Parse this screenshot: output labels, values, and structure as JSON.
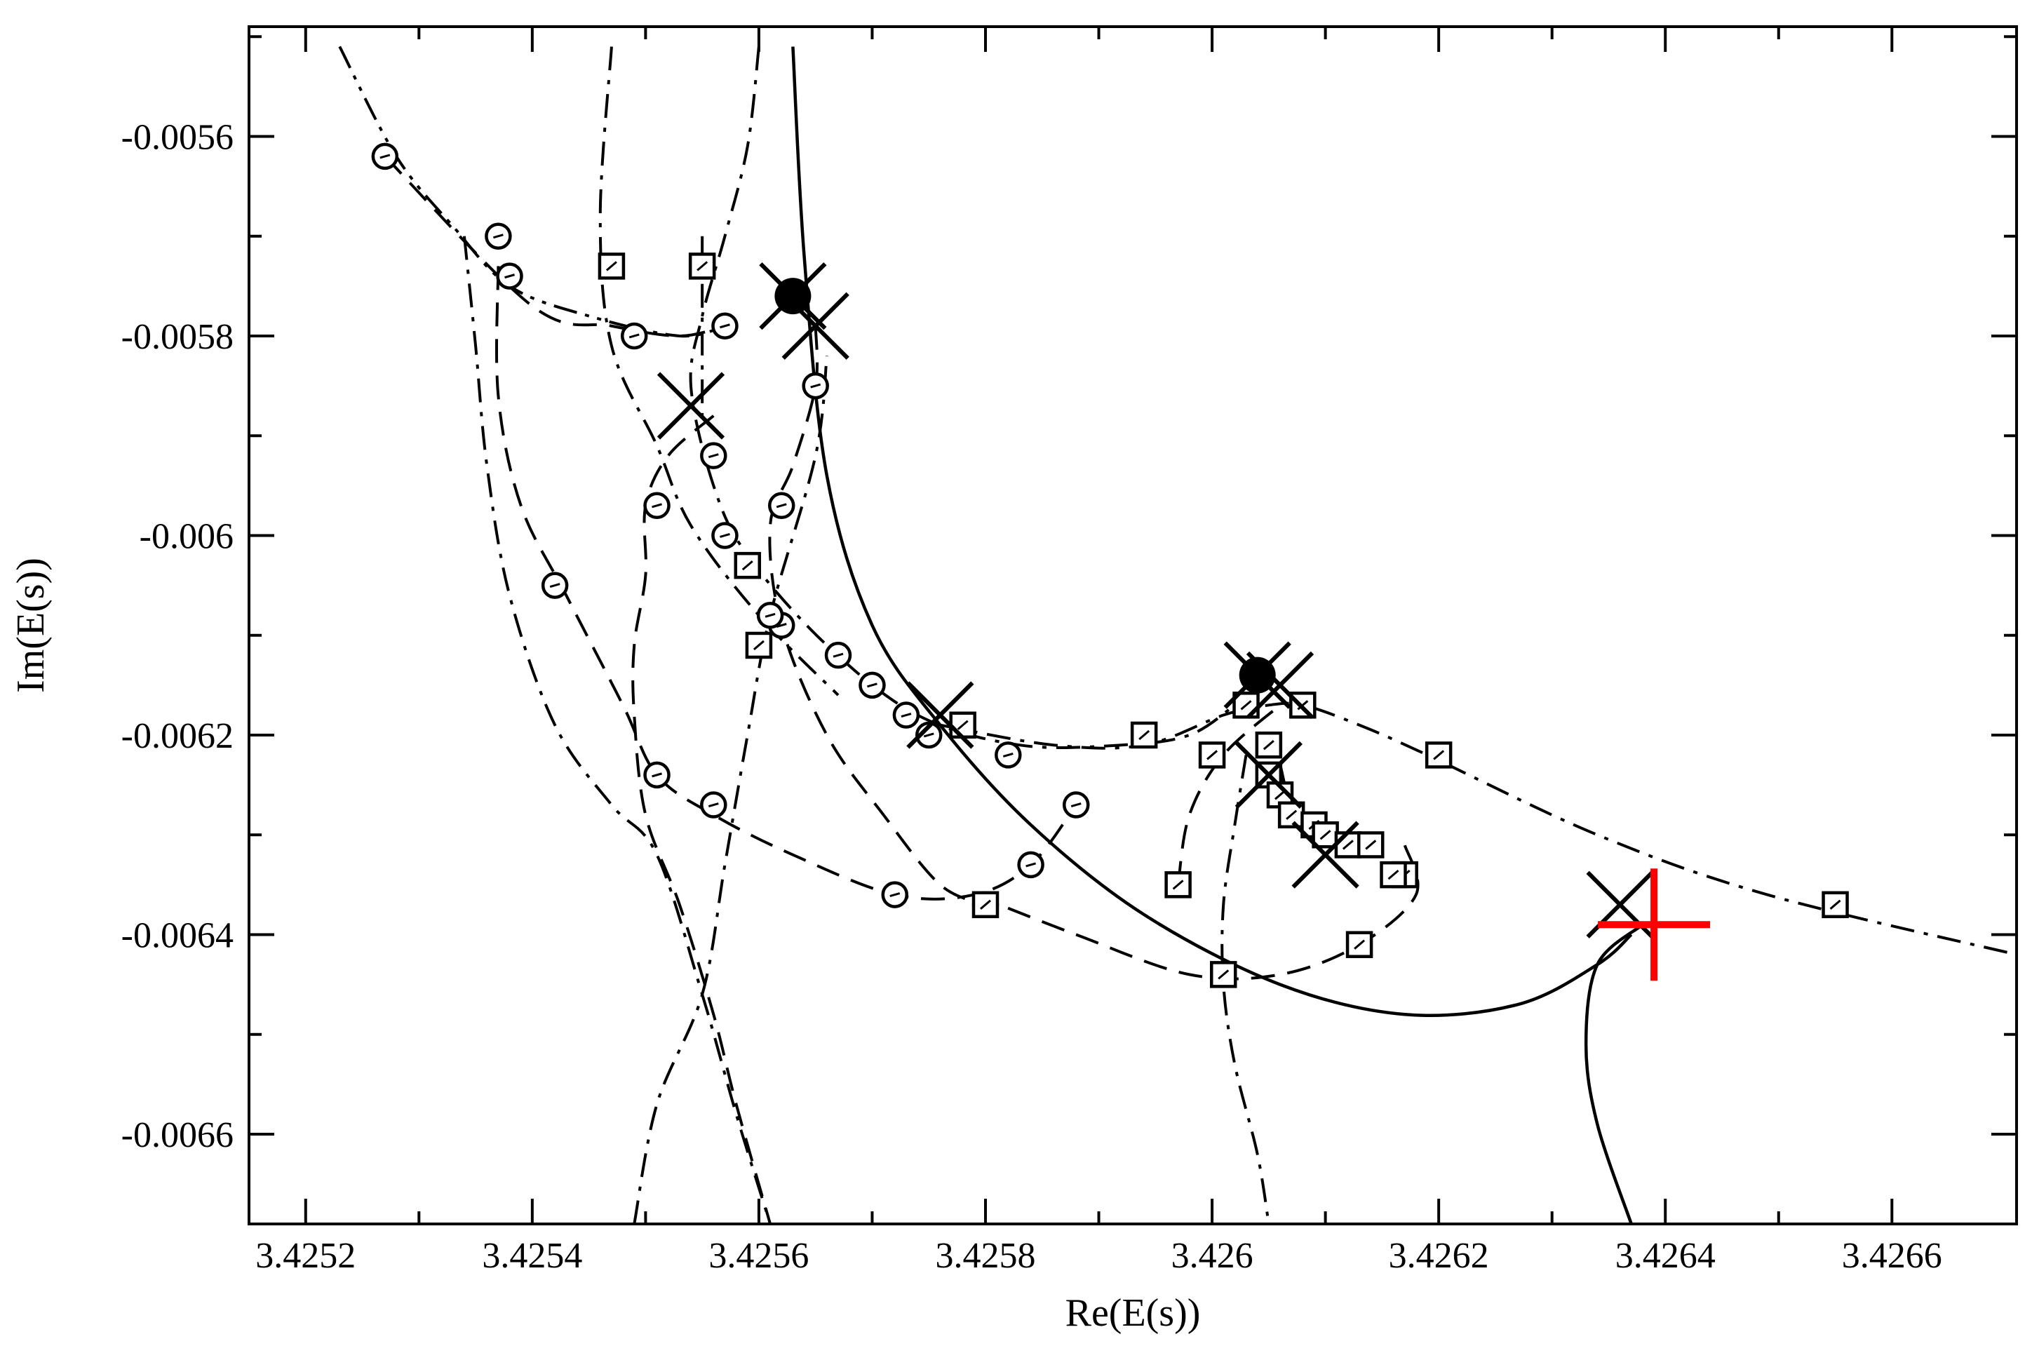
{
  "chart_data": {
    "type": "line",
    "xlabel": "Re(E(s))",
    "ylabel": "Im(E(s))",
    "xlim": [
      3.42515,
      3.42671
    ],
    "ylim": [
      -0.00669,
      -0.00549
    ],
    "x_major_ticks": [
      3.4252,
      3.4254,
      3.4256,
      3.4258,
      3.426,
      3.4262,
      3.4264,
      3.4266
    ],
    "x_minor_ticks": [
      3.4253,
      3.4255,
      3.4257,
      3.4259,
      3.4261,
      3.4263,
      3.4265
    ],
    "x_tick_labels": [
      "3.4252",
      "3.4254",
      "3.4256",
      "3.4258",
      "3.426",
      "3.4262",
      "3.4264",
      "3.4266"
    ],
    "y_major_ticks": [
      -0.0056,
      -0.0058,
      -0.006,
      -0.0062,
      -0.0064,
      -0.0066
    ],
    "y_minor_ticks": [
      -0.0055,
      -0.0057,
      -0.0059,
      -0.0061,
      -0.0063,
      -0.0065
    ],
    "y_tick_labels": [
      "-0.0056",
      "-0.0058",
      "-0.006",
      "-0.0062",
      "-0.0064",
      "-0.0066"
    ],
    "grid": false,
    "legend": false,
    "series": [
      {
        "style": "solid",
        "points": [
          [
            3.42563,
            -0.00551
          ],
          [
            3.42564,
            -0.00572
          ],
          [
            3.42566,
            -0.00594
          ],
          [
            3.4257,
            -0.00609
          ],
          [
            3.42576,
            -0.00619
          ],
          [
            3.42584,
            -0.00629
          ],
          [
            3.42594,
            -0.00638
          ],
          [
            3.42606,
            -0.00645
          ],
          [
            3.42617,
            -0.00648
          ],
          [
            3.42627,
            -0.00647
          ],
          [
            3.42634,
            -0.00643
          ],
          [
            3.42637,
            -0.0064
          ]
        ]
      },
      {
        "style": "solid",
        "points": [
          [
            3.42638,
            -0.00639
          ],
          [
            3.42634,
            -0.00643
          ],
          [
            3.42633,
            -0.00651
          ],
          [
            3.42634,
            -0.00659
          ],
          [
            3.42637,
            -0.00669
          ]
        ]
      },
      {
        "style": "dashed",
        "marker": "circle",
        "points": [
          [
            3.42556,
            -0.00588
          ],
          [
            3.42552,
            -0.00592
          ],
          [
            3.4255,
            -0.00597
          ],
          [
            3.4255,
            -0.00604
          ],
          [
            3.42549,
            -0.00611
          ],
          [
            3.42549,
            -0.00618
          ],
          [
            3.4255,
            -0.00628
          ],
          [
            3.42553,
            -0.00637
          ],
          [
            3.42556,
            -0.00648
          ],
          [
            3.42558,
            -0.00657
          ],
          [
            3.42561,
            -0.00669
          ]
        ],
        "markers": [
          [
            3.42551,
            -0.00597
          ],
          [
            3.42551,
            -0.00624
          ]
        ]
      },
      {
        "style": "dashed",
        "marker": "circle",
        "points": [
          [
            3.42527,
            -0.00562
          ],
          [
            3.4254,
            -0.00577
          ],
          [
            3.42547,
            -0.00579
          ],
          [
            3.42553,
            -0.0058
          ],
          [
            3.42557,
            -0.00579
          ]
        ],
        "markers": [
          [
            3.42527,
            -0.00562
          ],
          [
            3.42537,
            -0.0057
          ],
          [
            3.42549,
            -0.0058
          ],
          [
            3.42557,
            -0.00579
          ]
        ]
      },
      {
        "style": "dashed",
        "marker": "circle",
        "points": [
          [
            3.42537,
            -0.00573
          ],
          [
            3.42537,
            -0.00586
          ],
          [
            3.42539,
            -0.00597
          ],
          [
            3.42543,
            -0.00606
          ],
          [
            3.42548,
            -0.00617
          ],
          [
            3.42551,
            -0.00624
          ],
          [
            3.42556,
            -0.00628
          ],
          [
            3.42563,
            -0.00632
          ],
          [
            3.42572,
            -0.00636
          ],
          [
            3.42579,
            -0.00636
          ],
          [
            3.42584,
            -0.00633
          ],
          [
            3.42588,
            -0.00627
          ]
        ],
        "markers": [
          [
            3.42542,
            -0.00605
          ],
          [
            3.42556,
            -0.00627
          ],
          [
            3.42572,
            -0.00636
          ],
          [
            3.42584,
            -0.00633
          ],
          [
            3.42588,
            -0.00627
          ]
        ]
      },
      {
        "style": "dashed",
        "marker": "circle",
        "points": [
          [
            3.42565,
            -0.00579
          ],
          [
            3.42565,
            -0.00585
          ],
          [
            3.42563,
            -0.00593
          ],
          [
            3.42561,
            -0.00599
          ],
          [
            3.42562,
            -0.00609
          ],
          [
            3.42566,
            -0.0062
          ],
          [
            3.42571,
            -0.00628
          ],
          [
            3.42576,
            -0.00635
          ],
          [
            3.4258,
            -0.00637
          ]
        ],
        "markers": [
          [
            3.42565,
            -0.00585
          ],
          [
            3.42562,
            -0.00597
          ],
          [
            3.42562,
            -0.00609
          ],
          [
            3.4258,
            -0.00637
          ]
        ]
      },
      {
        "style": "dashed",
        "marker": "square",
        "points": [
          [
            3.42597,
            -0.00635
          ],
          [
            3.42598,
            -0.00628
          ],
          [
            3.42601,
            -0.00622
          ],
          [
            3.42606,
            -0.00617
          ]
        ],
        "markers": [
          [
            3.42597,
            -0.00635
          ],
          [
            3.426,
            -0.00622
          ],
          [
            3.42603,
            -0.00617
          ]
        ]
      },
      {
        "style": "dashed",
        "marker": "square",
        "points": [
          [
            3.42579,
            -0.00636
          ],
          [
            3.42588,
            -0.0064
          ],
          [
            3.42598,
            -0.00644
          ],
          [
            3.42606,
            -0.00644
          ],
          [
            3.42613,
            -0.00641
          ],
          [
            3.42618,
            -0.00636
          ],
          [
            3.42617,
            -0.00631
          ]
        ],
        "markers": [
          [
            3.4258,
            -0.00637
          ],
          [
            3.42601,
            -0.00644
          ],
          [
            3.42613,
            -0.00641
          ],
          [
            3.42617,
            -0.00634
          ]
        ]
      },
      {
        "style": "dashdot",
        "marker": "circle",
        "points": [
          [
            3.4256,
            -0.00551
          ],
          [
            3.42559,
            -0.00561
          ],
          [
            3.42557,
            -0.0057
          ],
          [
            3.42555,
            -0.00578
          ],
          [
            3.42554,
            -0.00585
          ],
          [
            3.42556,
            -0.00595
          ],
          [
            3.42559,
            -0.00602
          ],
          [
            3.42566,
            -0.00611
          ],
          [
            3.42574,
            -0.00618
          ],
          [
            3.42583,
            -0.00621
          ],
          [
            3.42592,
            -0.00621
          ],
          [
            3.42598,
            -0.0062
          ],
          [
            3.42602,
            -0.00617
          ]
        ],
        "markers": [
          [
            3.42556,
            -0.00592
          ],
          [
            3.42557,
            -0.006
          ],
          [
            3.42561,
            -0.00608
          ],
          [
            3.42567,
            -0.00612
          ],
          [
            3.4257,
            -0.00615
          ],
          [
            3.42573,
            -0.00618
          ],
          [
            3.42575,
            -0.0062
          ],
          [
            3.42582,
            -0.00622
          ]
        ]
      },
      {
        "style": "dashdot",
        "marker": "square",
        "points": [
          [
            3.42576,
            -0.00619
          ],
          [
            3.42586,
            -0.00621
          ],
          [
            3.42594,
            -0.00621
          ],
          [
            3.42601,
            -0.00618
          ],
          [
            3.42605,
            -0.00617
          ],
          [
            3.42608,
            -0.00617
          ],
          [
            3.42613,
            -0.00619
          ],
          [
            3.42619,
            -0.00622
          ],
          [
            3.42634,
            -0.0063
          ],
          [
            3.42649,
            -0.00636
          ],
          [
            3.42671,
            -0.00642
          ]
        ],
        "markers": [
          [
            3.42578,
            -0.00619
          ],
          [
            3.42594,
            -0.0062
          ],
          [
            3.42608,
            -0.00617
          ],
          [
            3.4262,
            -0.00622
          ],
          [
            3.42655,
            -0.00637
          ]
        ]
      },
      {
        "style": "dashdot",
        "marker": "square",
        "points": [
          [
            3.42547,
            -0.00551
          ],
          [
            3.42546,
            -0.00568
          ],
          [
            3.42547,
            -0.00581
          ],
          [
            3.42551,
            -0.00591
          ],
          [
            3.42554,
            -0.00599
          ],
          [
            3.4256,
            -0.00608
          ],
          [
            3.42567,
            -0.00616
          ]
        ],
        "markers": [
          [
            3.42547,
            -0.00573
          ],
          [
            3.42559,
            -0.00603
          ],
          [
            3.4256,
            -0.00611
          ]
        ]
      },
      {
        "style": "dashdot",
        "marker": "square",
        "points": [
          [
            3.42555,
            -0.0057
          ],
          [
            3.42555,
            -0.00582
          ],
          [
            3.42555,
            -0.00588
          ]
        ],
        "markers": [
          [
            3.42555,
            -0.00573
          ]
        ]
      },
      {
        "style": "dashdotdot",
        "marker": "circle",
        "points": [
          [
            3.42523,
            -0.00551
          ],
          [
            3.42528,
            -0.00562
          ],
          [
            3.42533,
            -0.00569
          ],
          [
            3.42538,
            -0.00575
          ],
          [
            3.42545,
            -0.00578
          ],
          [
            3.42553,
            -0.0058
          ],
          [
            3.42557,
            -0.00579
          ]
        ],
        "markers": [
          [
            3.42538,
            -0.00574
          ]
        ]
      },
      {
        "style": "dashdot",
        "marker": "square",
        "points": [
          [
            3.42603,
            -0.00622
          ],
          [
            3.42602,
            -0.00629
          ],
          [
            3.42601,
            -0.00637
          ],
          [
            3.42601,
            -0.00645
          ],
          [
            3.42602,
            -0.00653
          ],
          [
            3.42604,
            -0.00662
          ],
          [
            3.42605,
            -0.00669
          ]
        ],
        "markers": []
      },
      {
        "style": "dashdot",
        "marker": "none",
        "points": [
          [
            3.42549,
            -0.00669
          ],
          [
            3.42551,
            -0.00657
          ],
          [
            3.42555,
            -0.00646
          ],
          [
            3.42557,
            -0.00633
          ],
          [
            3.42559,
            -0.0062
          ],
          [
            3.42561,
            -0.00608
          ],
          [
            3.42565,
            -0.00592
          ],
          [
            3.42566,
            -0.00582
          ]
        ],
        "markers": []
      },
      {
        "style": "dashdot",
        "marker": "none",
        "points": [
          [
            3.42534,
            -0.0057
          ],
          [
            3.42535,
            -0.00581
          ],
          [
            3.42536,
            -0.00593
          ],
          [
            3.42538,
            -0.00606
          ],
          [
            3.42542,
            -0.00619
          ],
          [
            3.42547,
            -0.00627
          ],
          [
            3.42551,
            -0.00632
          ],
          [
            3.42555,
            -0.00646
          ],
          [
            3.42558,
            -0.00658
          ],
          [
            3.42561,
            -0.00669
          ]
        ],
        "markers": []
      },
      {
        "style": "solid",
        "marker": "square",
        "points": [
          [
            3.42606,
            -0.00623
          ],
          [
            3.42607,
            -0.00627
          ],
          [
            3.42609,
            -0.00629
          ],
          [
            3.42611,
            -0.0063
          ],
          [
            3.42613,
            -0.00631
          ],
          [
            3.42615,
            -0.00631
          ]
        ],
        "markers": [
          [
            3.42605,
            -0.00621
          ],
          [
            3.42605,
            -0.00624
          ],
          [
            3.42606,
            -0.00626
          ],
          [
            3.42607,
            -0.00628
          ],
          [
            3.42609,
            -0.00629
          ],
          [
            3.4261,
            -0.0063
          ],
          [
            3.42612,
            -0.00631
          ],
          [
            3.42614,
            -0.00631
          ],
          [
            3.42616,
            -0.00634
          ]
        ]
      }
    ],
    "cross_markers": [
      {
        "x": 3.42563,
        "y": -0.00576,
        "color": "#000000"
      },
      {
        "x": 3.42565,
        "y": -0.00579,
        "color": "#000000"
      },
      {
        "x": 3.42554,
        "y": -0.00587,
        "color": "#000000"
      },
      {
        "x": 3.42576,
        "y": -0.00618,
        "color": "#000000"
      },
      {
        "x": 3.42604,
        "y": -0.00614,
        "color": "#000000"
      },
      {
        "x": 3.42606,
        "y": -0.00615,
        "color": "#000000"
      },
      {
        "x": 3.42605,
        "y": -0.00624,
        "color": "#000000"
      },
      {
        "x": 3.4261,
        "y": -0.00632,
        "color": "#000000"
      },
      {
        "x": 3.42636,
        "y": -0.00637,
        "color": "#000000"
      }
    ],
    "plus_markers": [
      {
        "x": 3.42639,
        "y": -0.00639,
        "color": "#ff0000"
      }
    ],
    "filled_markers": [
      {
        "x": 3.42563,
        "y": -0.00576
      },
      {
        "x": 3.42604,
        "y": -0.00614
      }
    ]
  }
}
